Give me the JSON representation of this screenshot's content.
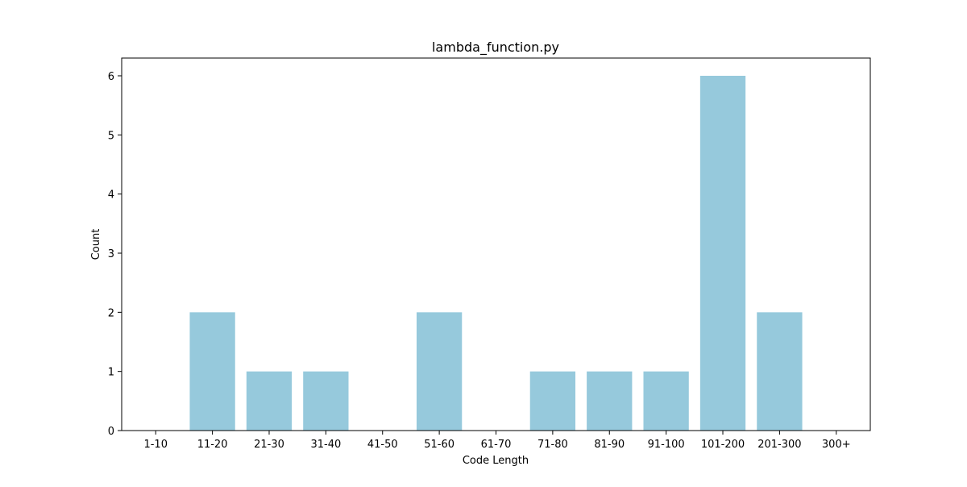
{
  "chart_data": {
    "type": "bar",
    "title": "lambda_function.py",
    "xlabel": "Code Length",
    "ylabel": "Count",
    "categories": [
      "1-10",
      "11-20",
      "21-30",
      "31-40",
      "41-50",
      "51-60",
      "61-70",
      "71-80",
      "81-90",
      "91-100",
      "101-200",
      "201-300",
      "300+"
    ],
    "values": [
      0,
      2,
      1,
      1,
      0,
      2,
      0,
      1,
      1,
      1,
      6,
      2,
      0
    ],
    "ylim": [
      0,
      6.3
    ],
    "yticks": [
      "0",
      "1",
      "2",
      "3",
      "4",
      "5",
      "6"
    ],
    "bar_color": "#96c9dc",
    "grid": false
  }
}
